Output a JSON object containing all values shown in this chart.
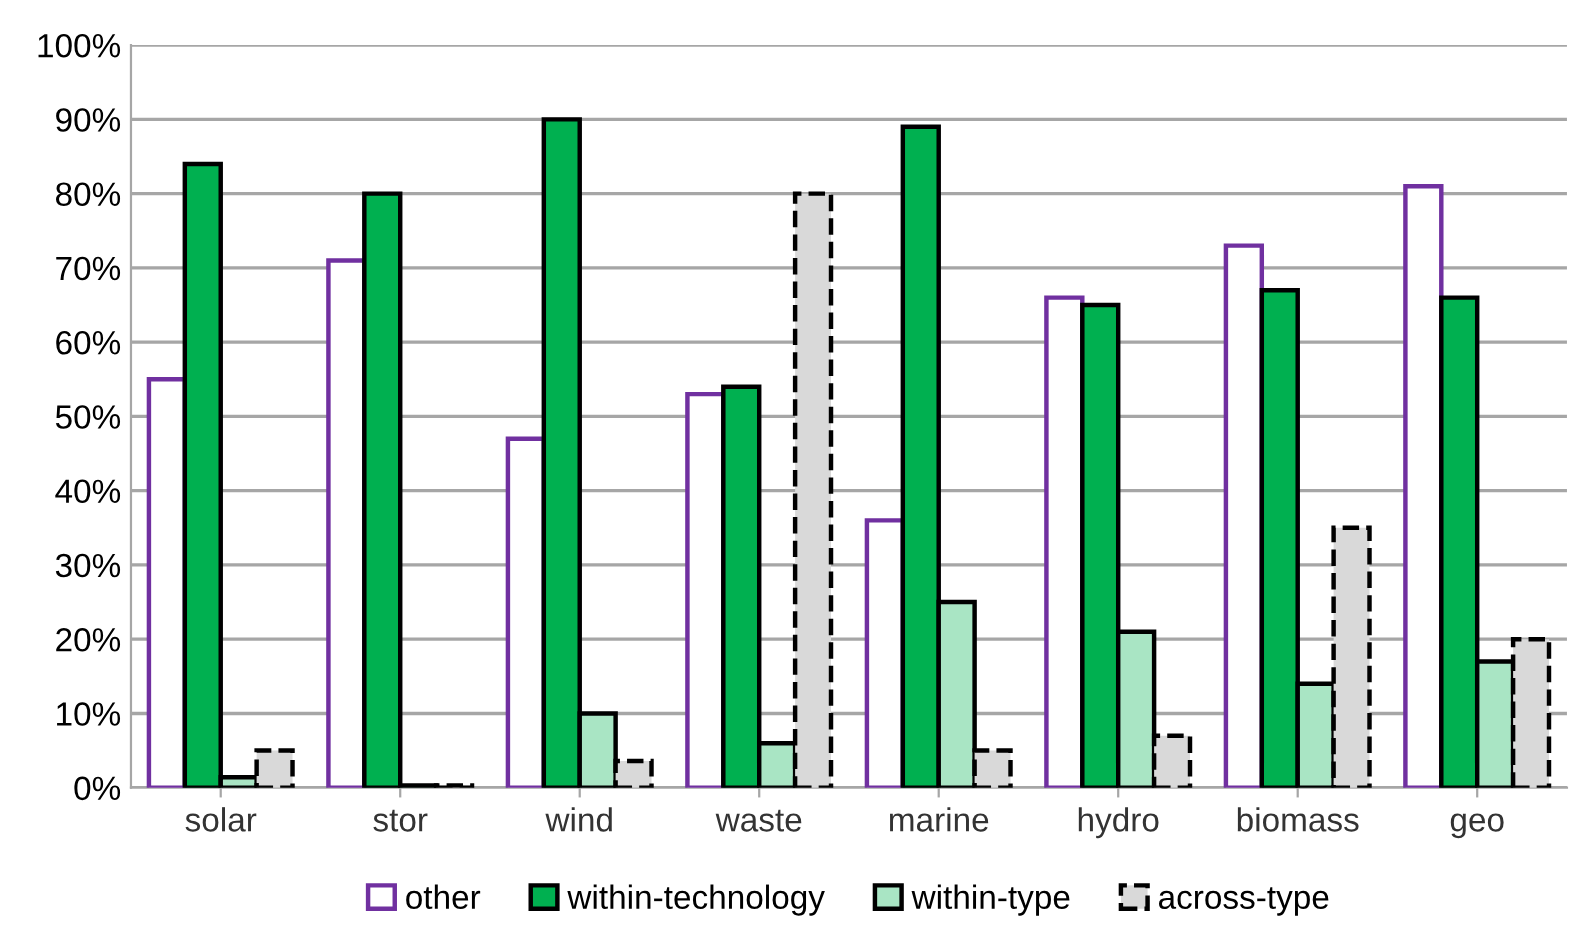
{
  "chart_data": {
    "type": "bar",
    "categories": [
      "solar",
      "stor",
      "wind",
      "waste",
      "marine",
      "hydro",
      "biomass",
      "geo"
    ],
    "series": [
      {
        "name": "other",
        "color": "#7030a0",
        "values": [
          55,
          71,
          47,
          53,
          36,
          66,
          73,
          81
        ]
      },
      {
        "name": "within-technology",
        "color": "#00b050",
        "values": [
          84,
          80,
          90,
          54,
          89,
          65,
          67,
          66
        ]
      },
      {
        "name": "within-type",
        "color": "#a9e5c4",
        "values": [
          1.4,
          0.3,
          10,
          6,
          25,
          21,
          14,
          17
        ]
      },
      {
        "name": "across-type",
        "color": "#d9d9d9",
        "line_style": "dashed",
        "values": [
          5,
          0.3,
          3.6,
          80,
          5,
          7,
          35,
          20
        ]
      }
    ],
    "ylim": [
      0,
      100
    ],
    "yticks": [
      {
        "value": 0,
        "label": "0%"
      },
      {
        "value": 10,
        "label": "10%"
      },
      {
        "value": 20,
        "label": "20%"
      },
      {
        "value": 30,
        "label": "30%"
      },
      {
        "value": 40,
        "label": "40%"
      },
      {
        "value": 50,
        "label": "50%"
      },
      {
        "value": 60,
        "label": "60%"
      },
      {
        "value": 70,
        "label": "70%"
      },
      {
        "value": 80,
        "label": "80%"
      },
      {
        "value": 90,
        "label": "90%"
      },
      {
        "value": 100,
        "label": "100%"
      }
    ],
    "grid": "y",
    "legend": "bottom"
  }
}
